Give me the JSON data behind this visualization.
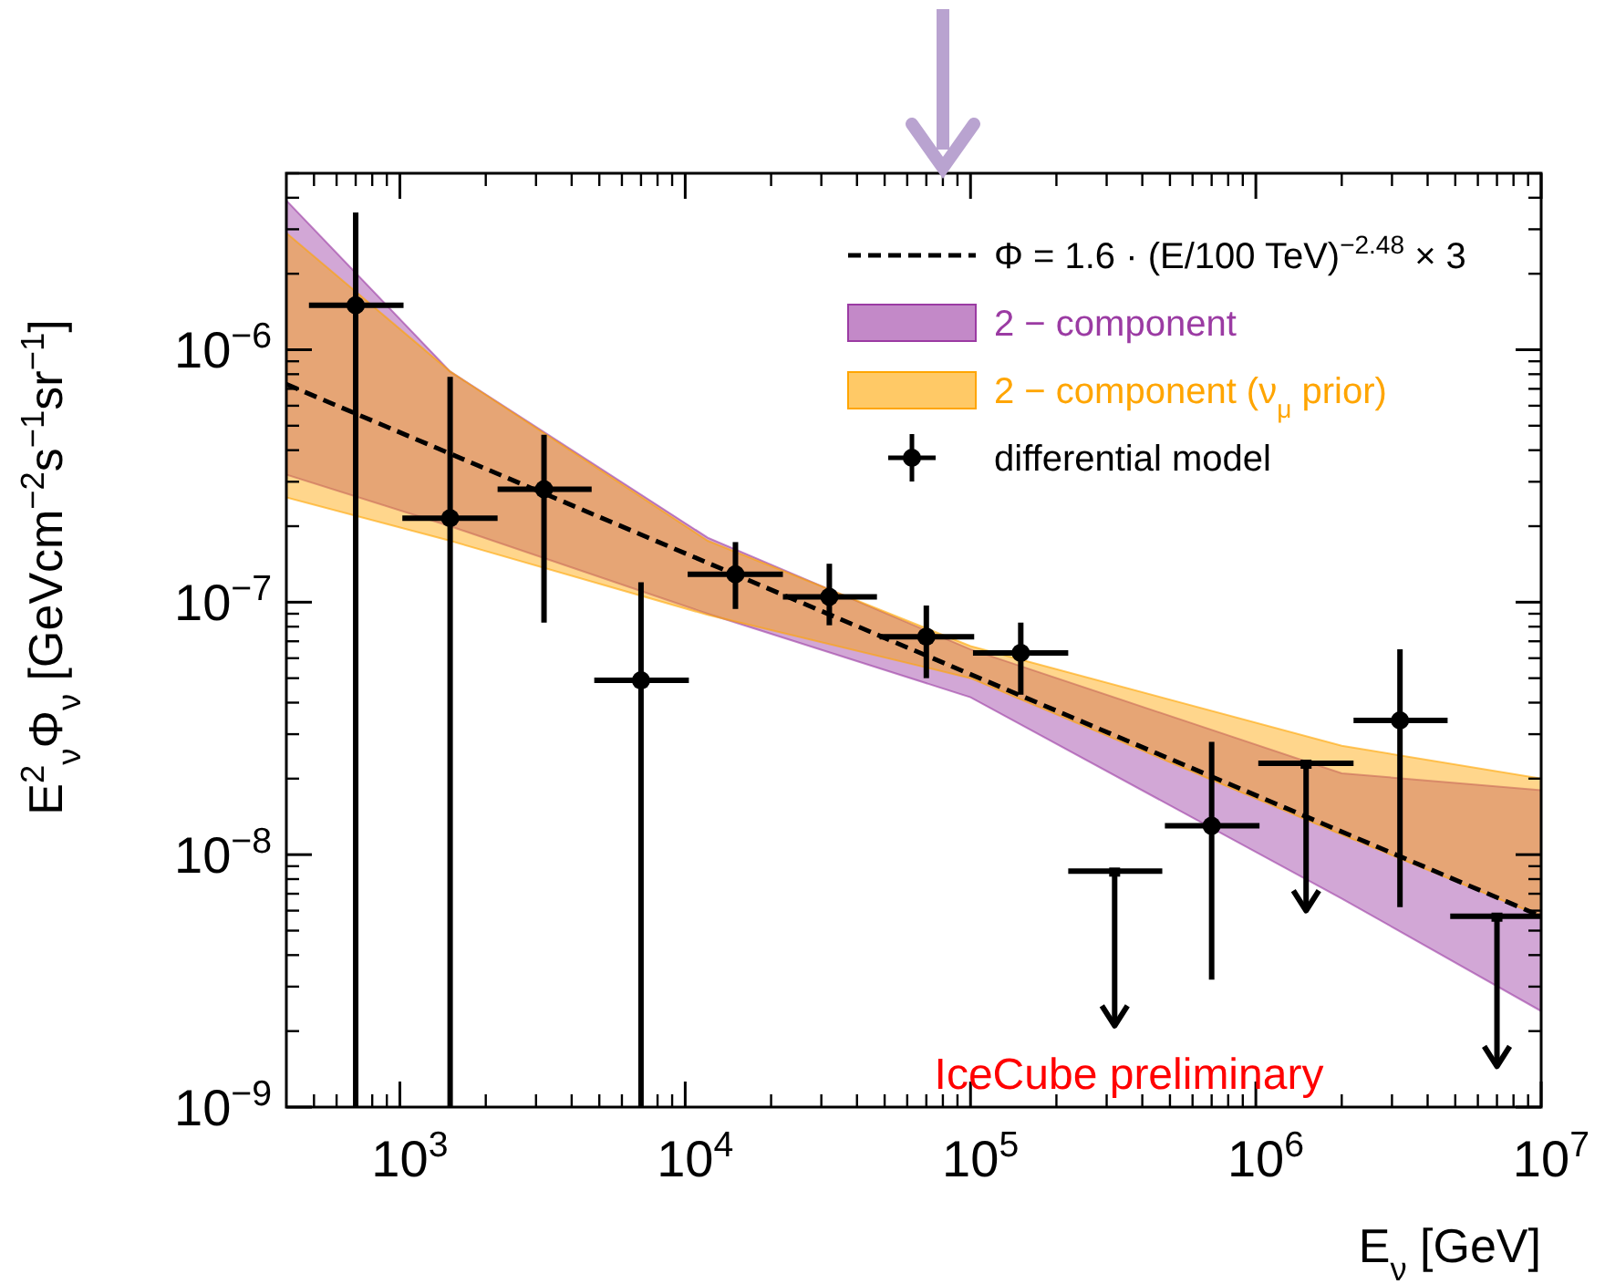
{
  "chart_data": {
    "type": "scatter",
    "xlabel": "E$_{ν}$ [GeV]",
    "ylabel": "E$^{2}$$_{ν}$Φ$_{ν}$ [GeVcm$^{−2}$s$^{−1}$sr$^{−1}$]",
    "log": "xy",
    "grid": false,
    "legend": "top right",
    "xlim": [
      400,
      10000000
    ],
    "ylim": [
      1e-09,
      5e-06
    ],
    "xticks": [
      {
        "value": 1000,
        "label": "10$^{3}$"
      },
      {
        "value": 10000,
        "label": "10$^{4}$"
      },
      {
        "value": 100000,
        "label": "10$^{5}$"
      },
      {
        "value": 1000000,
        "label": "10$^{6}$"
      },
      {
        "value": 10000000,
        "label": "10$^{7}$"
      }
    ],
    "yticks": [
      {
        "value": 1e-09,
        "label": "10$^{−9}$"
      },
      {
        "value": 1e-08,
        "label": "10$^{−8}$"
      },
      {
        "value": 1e-07,
        "label": "10$^{−7}$"
      },
      {
        "value": 1e-06,
        "label": "10$^{−6}$"
      }
    ],
    "annotations": [
      "IceCube preliminary"
    ],
    "series": [
      {
        "name": "Φ = 1.6 · (E/100 TeV)$^{−2.48}$ × 3",
        "type": "line",
        "marker": "none",
        "line_style": "dashed",
        "color": "#000000",
        "x": [
          400,
          10000000
        ],
        "values": [
          7.3e-07,
          5.7e-09
        ]
      },
      {
        "name": "2 − component",
        "type": "area",
        "color": "#9b3ba3",
        "x": [
          400,
          1500,
          12000,
          100000,
          2000000,
          10000000
        ],
        "values": [
          null,
          null,
          null,
          null,
          null,
          null
        ],
        "lower": [
          3.2e-07,
          2e-07,
          9e-08,
          4.2e-08,
          6.7e-09,
          2.4e-09
        ],
        "upper": [
          3.9e-06,
          8.2e-07,
          1.8e-07,
          6.5e-08,
          2.1e-08,
          1.8e-08
        ]
      },
      {
        "name": "2 − component (ν$_{μ}$ prior)",
        "type": "area",
        "color": "#ffa500",
        "x": [
          400,
          1500,
          12000,
          100000,
          2000000,
          10000000
        ],
        "values": [
          null,
          null,
          null,
          null,
          null,
          null
        ],
        "lower": [
          2.6e-07,
          1.75e-07,
          8.9e-08,
          5e-08,
          1.2e-08,
          5.7e-09
        ],
        "upper": [
          2.9e-06,
          8.2e-07,
          1.75e-07,
          6.7e-08,
          2.7e-08,
          2e-08
        ]
      },
      {
        "name": "differential model",
        "marker": "circle",
        "color": "#000000",
        "x": [
          700,
          1500,
          3200,
          7000,
          15000,
          32000,
          70000,
          150000,
          700000,
          3200000
        ],
        "values": [
          1.5e-06,
          2.15e-07,
          2.8e-07,
          4.9e-08,
          1.29e-07,
          1.05e-07,
          7.3e-08,
          6.3e-08,
          1.3e-08,
          3.4e-08
        ],
        "errors": [
          [
            1e-09,
            3.5e-06
          ],
          [
            1e-09,
            7.8e-07
          ],
          [
            8.3e-08,
            4.6e-07
          ],
          [
            1e-09,
            1.2e-07
          ],
          [
            9.4e-08,
            1.73e-07
          ],
          [
            8.1e-08,
            1.42e-07
          ],
          [
            5e-08,
            9.7e-08
          ],
          [
            4.3e-08,
            8.3e-08
          ],
          [
            3.2e-09,
            2.8e-08
          ],
          [
            6.2e-09,
            6.5e-08
          ]
        ],
        "xerrors": [
          [
            480,
            1030
          ],
          [
            1020,
            2200
          ],
          [
            2200,
            4700
          ],
          [
            4800,
            10300
          ],
          [
            10200,
            22000
          ],
          [
            22000,
            47000
          ],
          [
            48000,
            103000
          ],
          [
            102000,
            220000
          ],
          [
            480000,
            1030000
          ],
          [
            2200000,
            4700000
          ]
        ]
      },
      {
        "type": "scatter",
        "marker": "square",
        "color": "#000000",
        "x": [
          320000,
          1500000,
          7000000
        ],
        "values": [
          8.6e-09,
          2.3e-08,
          5.7e-09
        ],
        "errors": [
          [
            2.1e-09,
            8.6e-09
          ],
          [
            6e-09,
            2.3e-08
          ],
          [
            1.45e-09,
            5.7e-09
          ]
        ],
        "xerrors": [
          [
            220000,
            470000
          ],
          [
            1020000,
            2200000
          ],
          [
            4800000,
            10000000
          ]
        ]
      }
    ]
  }
}
